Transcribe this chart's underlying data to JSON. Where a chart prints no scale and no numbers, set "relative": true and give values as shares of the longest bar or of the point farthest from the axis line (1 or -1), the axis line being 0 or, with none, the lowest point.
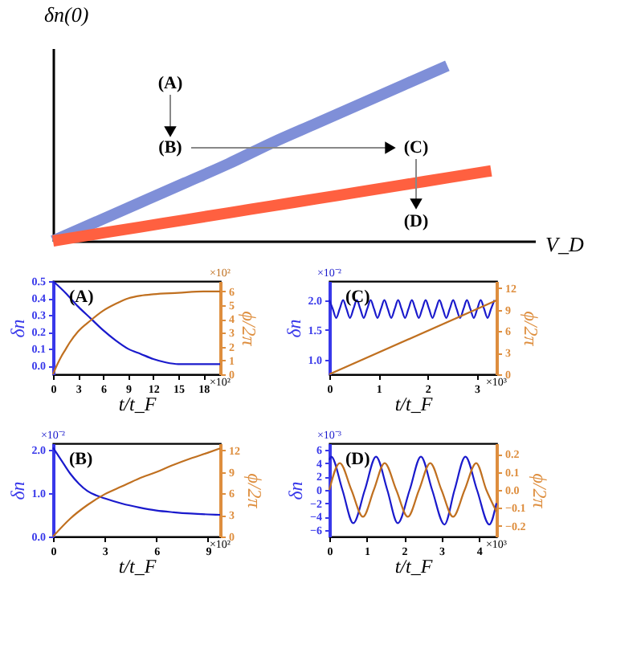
{
  "chart_data": [
    {
      "type": "line",
      "relative": true,
      "xlabel": "V_D",
      "ylabel": "δn(0)",
      "tick_labels": false,
      "grid": false,
      "annotations": [
        "(A)",
        "(B)",
        "(C)",
        "(D)"
      ],
      "categories": [
        null,
        null,
        null,
        null,
        null,
        null,
        null,
        null,
        null,
        null,
        null
      ],
      "series": [
        {
          "color": "#7f8fd8",
          "values": [
            0,
            0.11,
            0.22,
            0.33,
            0.44,
            0.56,
            0.67,
            0.78,
            0.89,
            1.0,
            null
          ]
        },
        {
          "color": "#ff6040",
          "values": [
            0,
            0.04,
            0.08,
            0.12,
            0.16,
            0.2,
            0.24,
            0.28,
            0.32,
            0.36,
            0.4
          ]
        }
      ]
    },
    {
      "type": "line",
      "xlabel": "t/t_F",
      "ylabel": "δn",
      "y2label": "ϕ/2π",
      "grid": false,
      "annotations": [
        "(A)",
        "×10²",
        "×10²"
      ],
      "xlim": [
        0,
        20
      ],
      "xticks": [
        0,
        3,
        6,
        9,
        12,
        15,
        18
      ],
      "ylim": [
        -0.05,
        0.5
      ],
      "yticks": [
        {
          "value": 0,
          "label": "0.0"
        },
        0.1,
        0.2,
        0.3,
        0.4,
        0.5
      ],
      "y2lim": [
        0,
        6.75
      ],
      "y2ticks": [
        0,
        1,
        2,
        3,
        4,
        5,
        6
      ],
      "series": [
        {
          "color": "#1a1acc",
          "x": [
            0,
            1.5,
            3,
            4.5,
            6,
            7.5,
            9,
            10.5,
            12,
            13.5,
            15,
            18,
            20
          ],
          "values": [
            0.5,
            0.43,
            0.35,
            0.28,
            0.21,
            0.15,
            0.1,
            0.07,
            0.04,
            0.02,
            0.01,
            0.01,
            0.01
          ]
        },
        {
          "color": "#c07020",
          "axis": "y2",
          "x": [
            0,
            0.5,
            1,
            1.5,
            2,
            3,
            4.5,
            6,
            7.5,
            9,
            10.5,
            12,
            15,
            18,
            20
          ],
          "values": [
            0,
            0.7,
            1.3,
            1.8,
            2.3,
            3.1,
            3.9,
            4.6,
            5.1,
            5.5,
            5.7,
            5.8,
            5.9,
            6.0,
            6.0
          ]
        }
      ]
    },
    {
      "type": "line",
      "xlabel": "t/t_F",
      "ylabel": "δn",
      "y2label": "ϕ/2π",
      "grid": false,
      "annotations": [
        "(B)",
        "×10²",
        "×10⁻²"
      ],
      "xlim": [
        0,
        9.7
      ],
      "xticks": [
        0,
        3,
        6,
        9
      ],
      "ylim": [
        0,
        2.15
      ],
      "yticks": [
        {
          "value": 0,
          "label": "0.0"
        },
        {
          "value": 1,
          "label": "1.0"
        },
        {
          "value": 2,
          "label": "2.0"
        }
      ],
      "y2lim": [
        0,
        13
      ],
      "y2ticks": [
        0,
        3,
        6,
        9,
        12
      ],
      "series": [
        {
          "color": "#1a1acc",
          "x": [
            0,
            0.5,
            1,
            1.5,
            2,
            2.5,
            3,
            4,
            5,
            6,
            7,
            8,
            9,
            9.7
          ],
          "values": [
            2.05,
            1.75,
            1.45,
            1.22,
            1.05,
            0.95,
            0.88,
            0.76,
            0.67,
            0.6,
            0.56,
            0.53,
            0.51,
            0.5
          ]
        },
        {
          "color": "#c07020",
          "axis": "y2",
          "x": [
            0,
            1,
            2,
            3,
            4,
            5,
            6,
            7,
            8,
            9,
            9.7
          ],
          "values": [
            0,
            2.5,
            4.4,
            5.9,
            7.0,
            8.1,
            9.0,
            10.0,
            10.9,
            11.7,
            12.3
          ]
        }
      ]
    },
    {
      "type": "line",
      "xlabel": "t/t_F",
      "ylabel": "δn",
      "y2label": "ϕ/2π",
      "grid": false,
      "annotations": [
        "(C)",
        "×10³",
        "×10⁻²"
      ],
      "xlim": [
        0,
        3.4
      ],
      "xticks": [
        0,
        1,
        2,
        3
      ],
      "ylim": [
        0.75,
        2.32
      ],
      "yticks": [
        {
          "value": 1,
          "label": "1.0"
        },
        1.5,
        {
          "value": 2,
          "label": "2.0"
        }
      ],
      "y2lim": [
        0,
        13
      ],
      "y2ticks": [
        0,
        3,
        6,
        9,
        12
      ],
      "series": [
        {
          "color": "#1a1acc",
          "x": [
            0,
            0.07,
            0.14,
            0.21,
            0.28,
            0.35,
            0.42,
            0.49,
            0.56,
            0.63,
            0.7,
            0.77,
            0.84,
            0.91,
            0.98,
            1.05,
            1.12,
            1.19,
            1.26,
            1.33,
            1.4,
            1.47,
            1.54,
            1.61,
            1.68,
            1.75,
            1.82,
            1.89,
            1.96,
            2.03,
            2.1,
            2.17,
            2.24,
            2.31,
            2.38,
            2.45,
            2.52,
            2.59,
            2.66,
            2.73,
            2.8,
            2.87,
            2.94,
            3.01,
            3.08,
            3.15,
            3.22,
            3.29,
            3.36
          ],
          "values": [
            2.0,
            1.85,
            1.7,
            1.85,
            2.0,
            1.85,
            1.7,
            1.85,
            2.0,
            1.85,
            1.7,
            1.85,
            2.0,
            1.85,
            1.7,
            1.85,
            2.0,
            1.85,
            1.7,
            1.85,
            2.0,
            1.85,
            1.7,
            1.85,
            2.0,
            1.85,
            1.7,
            1.85,
            2.0,
            1.85,
            1.7,
            1.85,
            2.0,
            1.85,
            1.7,
            1.85,
            2.0,
            1.85,
            1.7,
            1.85,
            2.0,
            1.85,
            1.7,
            1.85,
            2.0,
            1.85,
            1.7,
            1.85,
            2.0
          ]
        },
        {
          "color": "#c07020",
          "axis": "y2",
          "x": [
            0,
            3.4
          ],
          "values": [
            0,
            10.3
          ]
        }
      ]
    },
    {
      "type": "line",
      "xlabel": "t/t_F",
      "ylabel": "δn",
      "y2label": "ϕ/2π",
      "grid": false,
      "annotations": [
        "(D)",
        "×10³",
        "×10⁻³"
      ],
      "xlim": [
        0,
        4.47
      ],
      "xticks": [
        0,
        1,
        2,
        3,
        4
      ],
      "ylim": [
        -7,
        7
      ],
      "yticks": [
        -6,
        -4,
        -2,
        0,
        2,
        4,
        6
      ],
      "y2lim": [
        -0.26,
        0.26
      ],
      "y2ticks": [
        -0.2,
        -0.1,
        {
          "value": 0,
          "label": "0.0"
        },
        0.1,
        0.2
      ],
      "series": [
        {
          "color": "#1a1acc",
          "x": [
            0,
            0.05,
            0.35,
            0.64,
            0.95,
            1.25,
            1.55,
            1.83,
            2.15,
            2.45,
            2.75,
            3.08,
            3.35,
            3.64,
            3.95,
            4.28,
            4.47
          ],
          "values": [
            4.5,
            5,
            0,
            -5,
            0,
            5,
            0,
            -5,
            0,
            5,
            0,
            -5.2,
            0,
            5,
            0,
            -5.2,
            -2
          ]
        },
        {
          "color": "#c07020",
          "axis": "y2",
          "x": [
            0,
            0.28,
            0.59,
            0.9,
            1.19,
            1.48,
            1.79,
            2.1,
            2.4,
            2.7,
            3.0,
            3.31,
            3.62,
            3.93,
            4.2,
            4.47
          ],
          "values": [
            0,
            0.15,
            0,
            -0.15,
            0,
            0.15,
            0,
            -0.15,
            0,
            0.15,
            0,
            -0.15,
            0,
            0.15,
            0,
            -0.12
          ]
        }
      ]
    }
  ]
}
